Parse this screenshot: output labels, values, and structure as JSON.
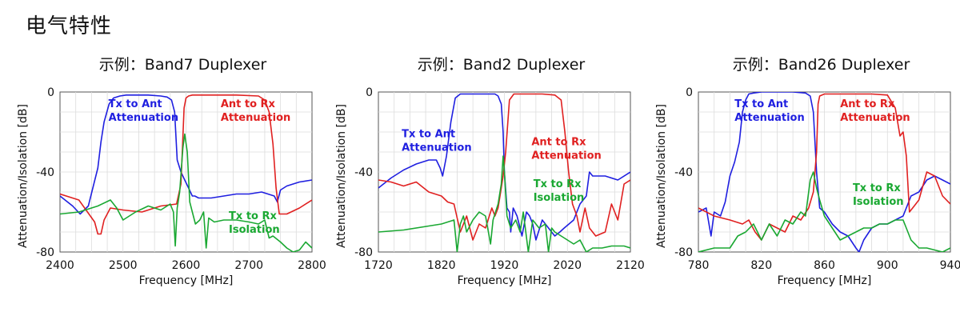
{
  "page_title": "电气特性",
  "chart_data": [
    {
      "type": "line",
      "title": "示例：Band7 Duplexer",
      "xlabel": "Frequency [MHz]",
      "ylabel": "Attenuation/Isolation [dB]",
      "xlim": [
        2400,
        2800
      ],
      "ylim": [
        -80,
        0
      ],
      "xticks": [
        "2400",
        "2500",
        "2600",
        "2700",
        "2800"
      ],
      "yticks": [
        "0",
        "-40",
        "-80"
      ],
      "grid": true,
      "series": [
        {
          "name": "Tx to Ant Attenuation",
          "color": "#1f1fe0",
          "x": [
            2400,
            2420,
            2432,
            2445,
            2460,
            2465,
            2470,
            2478,
            2485,
            2495,
            2505,
            2520,
            2540,
            2560,
            2570,
            2577,
            2582,
            2586,
            2592,
            2598,
            2604,
            2610,
            2614,
            2620,
            2640,
            2660,
            2680,
            2700,
            2720,
            2740,
            2745,
            2750,
            2760,
            2780,
            2800
          ],
          "y": [
            -52,
            -57,
            -61,
            -57,
            -38,
            -25,
            -15,
            -6,
            -3,
            -2,
            -1.5,
            -1.5,
            -1.5,
            -2,
            -2.5,
            -4,
            -10,
            -34,
            -40,
            -44,
            -48,
            -52,
            -52,
            -53,
            -53,
            -52,
            -51,
            -51,
            -50,
            -52,
            -55,
            -49,
            -47,
            -45,
            -44
          ]
        },
        {
          "name": "Ant to Rx Attenuation",
          "color": "#e02020",
          "x": [
            2400,
            2430,
            2455,
            2460,
            2465,
            2470,
            2480,
            2500,
            2530,
            2560,
            2585,
            2592,
            2597,
            2600,
            2604,
            2610,
            2620,
            2640,
            2680,
            2715,
            2725,
            2732,
            2738,
            2743,
            2748,
            2760,
            2780,
            2800
          ],
          "y": [
            -51,
            -54,
            -65,
            -71,
            -71,
            -64,
            -58,
            -59,
            -60,
            -57,
            -56,
            -46,
            -8,
            -3,
            -2,
            -1.5,
            -1.5,
            -1.5,
            -1.5,
            -2,
            -4,
            -10,
            -26,
            -48,
            -61,
            -61,
            -58,
            -54
          ]
        },
        {
          "name": "Tx to Rx Isolation",
          "color": "#1aa832",
          "x": [
            2400,
            2430,
            2460,
            2480,
            2490,
            2500,
            2520,
            2540,
            2560,
            2575,
            2580,
            2583,
            2586,
            2590,
            2595,
            2598,
            2602,
            2606,
            2610,
            2615,
            2622,
            2628,
            2632,
            2636,
            2645,
            2660,
            2680,
            2700,
            2715,
            2725,
            2732,
            2738,
            2750,
            2760,
            2770,
            2780,
            2790,
            2800
          ],
          "y": [
            -61,
            -60,
            -57,
            -54,
            -58,
            -64,
            -60,
            -57,
            -59,
            -56,
            -60,
            -77,
            -58,
            -50,
            -28,
            -21,
            -30,
            -55,
            -60,
            -66,
            -64,
            -60,
            -78,
            -63,
            -65,
            -64,
            -64,
            -65,
            -66,
            -64,
            -73,
            -72,
            -75,
            -78,
            -80,
            -79,
            -75,
            -78
          ]
        }
      ],
      "annotations": [
        {
          "text": [
            "Tx to Ant",
            "Attenuation"
          ],
          "color": "#1f1fe0",
          "x": 2477,
          "y": -6
        },
        {
          "text": [
            "Ant to Rx",
            "Attenuation"
          ],
          "color": "#e02020",
          "x": 2655,
          "y": -6
        },
        {
          "text": [
            "Tx to Rx",
            "Isolation"
          ],
          "color": "#1aa832",
          "x": 2668,
          "y": -62
        }
      ]
    },
    {
      "type": "line",
      "title": "示例：Band2 Duplexer",
      "xlabel": "Frequency [MHz]",
      "ylabel": "Attenuation/Isolation [dB]",
      "xlim": [
        1720,
        2120
      ],
      "ylim": [
        -80,
        0
      ],
      "xticks": [
        "1720",
        "1820",
        "1920",
        "2020",
        "2120"
      ],
      "yticks": [
        "0",
        "-40",
        "-80"
      ],
      "grid": true,
      "series": [
        {
          "name": "Tx to Ant Attenuation",
          "color": "#1f1fe0",
          "x": [
            1720,
            1740,
            1760,
            1780,
            1800,
            1812,
            1818,
            1822,
            1828,
            1835,
            1842,
            1850,
            1870,
            1890,
            1905,
            1910,
            1915,
            1918,
            1920,
            1924,
            1928,
            1930,
            1934,
            1940,
            1948,
            1955,
            1960,
            1965,
            1970,
            1980,
            1990,
            2000,
            2008,
            2015,
            2030,
            2040,
            2050,
            2055,
            2060,
            2080,
            2100,
            2120
          ],
          "y": [
            -48,
            -43,
            -39,
            -36,
            -34,
            -34,
            -38,
            -42,
            -32,
            -15,
            -3,
            -1,
            -1,
            -1,
            -1,
            -2,
            -6,
            -20,
            -40,
            -58,
            -60,
            -70,
            -58,
            -62,
            -72,
            -60,
            -62,
            -66,
            -74,
            -64,
            -68,
            -72,
            -70,
            -68,
            -64,
            -56,
            -52,
            -40,
            -42,
            -42,
            -44,
            -40
          ]
        },
        {
          "name": "Ant to Rx Attenuation",
          "color": "#e02020",
          "x": [
            1720,
            1740,
            1760,
            1780,
            1800,
            1820,
            1830,
            1840,
            1850,
            1860,
            1870,
            1880,
            1890,
            1900,
            1905,
            1910,
            1915,
            1918,
            1922,
            1928,
            1935,
            1945,
            1960,
            1980,
            2000,
            2010,
            2016,
            2022,
            2028,
            2035,
            2040,
            2048,
            2055,
            2065,
            2080,
            2090,
            2100,
            2110,
            2120
          ],
          "y": [
            -44,
            -45,
            -47,
            -45,
            -50,
            -52,
            -55,
            -56,
            -70,
            -62,
            -74,
            -66,
            -68,
            -58,
            -62,
            -58,
            -48,
            -42,
            -30,
            -4,
            -1,
            -1,
            -1,
            -1,
            -1.5,
            -4,
            -20,
            -40,
            -56,
            -62,
            -70,
            -58,
            -68,
            -72,
            -70,
            -56,
            -64,
            -46,
            -44
          ]
        },
        {
          "name": "Tx to Rx Isolation",
          "color": "#1aa832",
          "x": [
            1720,
            1760,
            1800,
            1820,
            1840,
            1845,
            1850,
            1855,
            1860,
            1870,
            1880,
            1890,
            1898,
            1902,
            1910,
            1915,
            1918,
            1920,
            1924,
            1930,
            1938,
            1945,
            1950,
            1958,
            1965,
            1975,
            1985,
            1990,
            1995,
            2000,
            2010,
            2020,
            2030,
            2040,
            2050,
            2060,
            2075,
            2090,
            2110,
            2120
          ],
          "y": [
            -70,
            -69,
            -67,
            -66,
            -64,
            -80,
            -66,
            -62,
            -70,
            -64,
            -60,
            -62,
            -76,
            -64,
            -56,
            -46,
            -32,
            -40,
            -62,
            -68,
            -64,
            -70,
            -60,
            -80,
            -64,
            -68,
            -66,
            -80,
            -68,
            -70,
            -72,
            -74,
            -76,
            -74,
            -80,
            -78,
            -78,
            -77,
            -77,
            -78
          ]
        }
      ],
      "annotations": [
        {
          "text": [
            "Tx to Ant",
            "Attenuation"
          ],
          "color": "#1f1fe0",
          "x": 1757,
          "y": -21
        },
        {
          "text": [
            "Ant to Rx",
            "Attenuation"
          ],
          "color": "#e02020",
          "x": 1963,
          "y": -25
        },
        {
          "text": [
            "Tx to Rx",
            "Isolation"
          ],
          "color": "#1aa832",
          "x": 1966,
          "y": -46
        }
      ]
    },
    {
      "type": "line",
      "title": "示例：Band26 Duplexer",
      "xlabel": "Frequency [MHz]",
      "ylabel": "Attenuation/Isolation [dB]",
      "xlim": [
        780,
        940
      ],
      "ylim": [
        -80,
        0
      ],
      "xticks": [
        "780",
        "820",
        "860",
        "900",
        "940"
      ],
      "yticks": [
        "0",
        "-40",
        "-80"
      ],
      "grid": true,
      "series": [
        {
          "name": "Tx to Ant Attenuation",
          "color": "#1f1fe0",
          "x": [
            780,
            785,
            788,
            790,
            794,
            797,
            800,
            803,
            806,
            808,
            810,
            812,
            815,
            820,
            830,
            840,
            848,
            851,
            853,
            855,
            857,
            860,
            865,
            870,
            875,
            880,
            882,
            885,
            890,
            895,
            900,
            905,
            910,
            915,
            920,
            925,
            930,
            935,
            940
          ],
          "y": [
            -60,
            -58,
            -72,
            -60,
            -62,
            -55,
            -42,
            -35,
            -25,
            -10,
            -4,
            -1,
            -0.5,
            0,
            0,
            0,
            -0.5,
            -2,
            -10,
            -40,
            -58,
            -60,
            -66,
            -70,
            -72,
            -78,
            -80,
            -74,
            -68,
            -66,
            -66,
            -64,
            -62,
            -52,
            -50,
            -44,
            -42,
            -44,
            -46
          ]
        },
        {
          "name": "Ant to Rx Attenuation",
          "color": "#e02020",
          "x": [
            780,
            790,
            800,
            808,
            812,
            816,
            820,
            825,
            830,
            835,
            840,
            845,
            850,
            853,
            855,
            856,
            857,
            860,
            870,
            880,
            890,
            900,
            905,
            908,
            910,
            912,
            914,
            916,
            918,
            920,
            925,
            930,
            935,
            940
          ],
          "y": [
            -58,
            -62,
            -64,
            -66,
            -64,
            -70,
            -74,
            -66,
            -68,
            -70,
            -62,
            -64,
            -58,
            -50,
            -30,
            -6,
            -2,
            -1,
            -1,
            -1,
            -1,
            -1.5,
            -8,
            -22,
            -20,
            -32,
            -60,
            -58,
            -56,
            -54,
            -40,
            -42,
            -52,
            -56
          ]
        },
        {
          "name": "Tx to Rx Isolation",
          "color": "#1aa832",
          "x": [
            780,
            790,
            800,
            805,
            810,
            815,
            820,
            825,
            830,
            835,
            840,
            845,
            848,
            851,
            853,
            855,
            857,
            860,
            865,
            870,
            875,
            880,
            885,
            890,
            895,
            900,
            905,
            910,
            915,
            920,
            925,
            930,
            935,
            940
          ],
          "y": [
            -80,
            -78,
            -78,
            -72,
            -70,
            -66,
            -74,
            -66,
            -72,
            -64,
            -66,
            -60,
            -62,
            -44,
            -40,
            -48,
            -54,
            -62,
            -68,
            -74,
            -72,
            -70,
            -68,
            -68,
            -66,
            -66,
            -64,
            -64,
            -74,
            -78,
            -78,
            -79,
            -80,
            -78
          ]
        }
      ],
      "annotations": [
        {
          "text": [
            "Tx to Ant",
            "Attenuation"
          ],
          "color": "#1f1fe0",
          "x": 803,
          "y": -6
        },
        {
          "text": [
            "Ant to Rx",
            "Attenuation"
          ],
          "color": "#e02020",
          "x": 870,
          "y": -6
        },
        {
          "text": [
            "Tx to Rx",
            "Isolation"
          ],
          "color": "#1aa832",
          "x": 878,
          "y": -48
        }
      ]
    }
  ]
}
